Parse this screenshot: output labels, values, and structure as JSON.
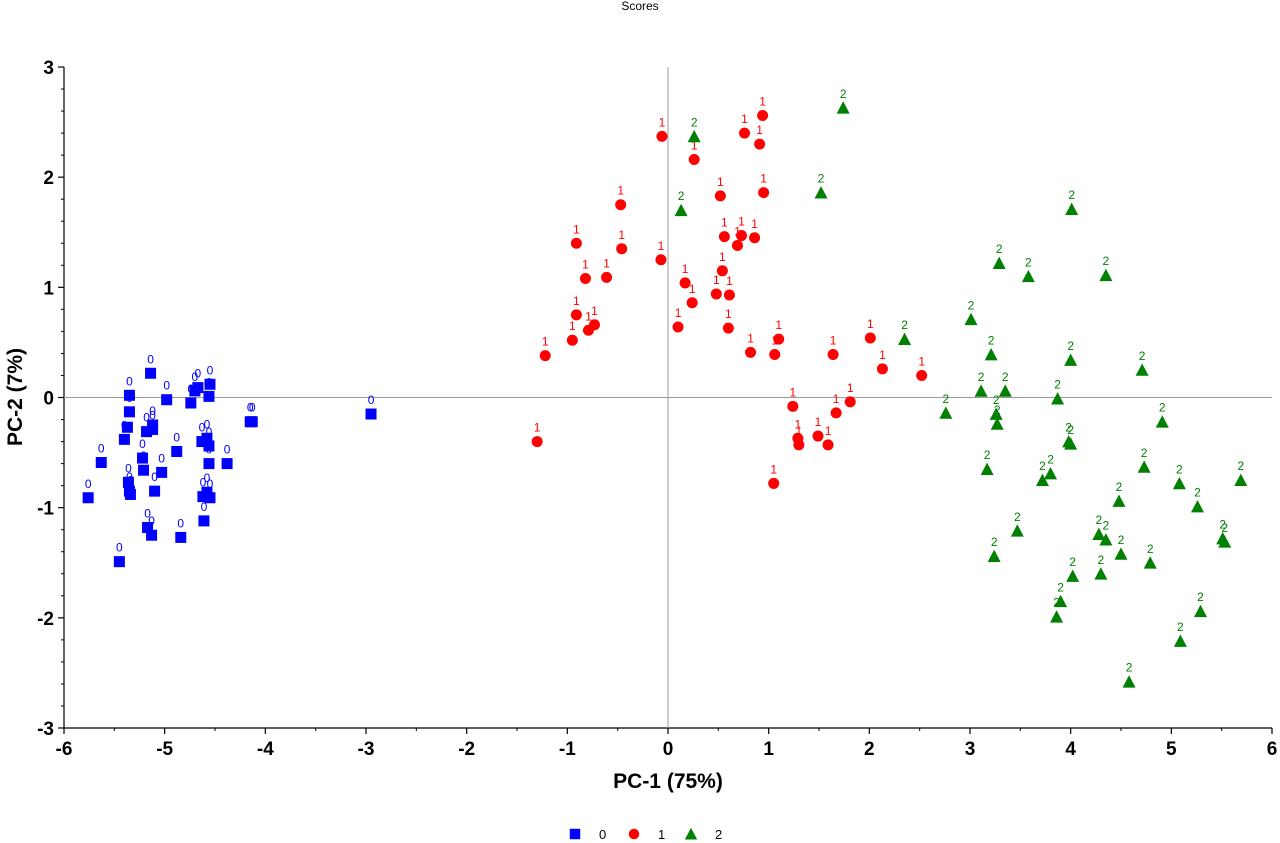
{
  "chart_data": {
    "type": "scatter",
    "title": "Scores",
    "xlabel": "PC-1 (75%)",
    "ylabel": "PC-2 (7%)",
    "xlim": [
      -6,
      6
    ],
    "ylim": [
      -3,
      3
    ],
    "xticks": [
      "-6",
      "-5",
      "-4",
      "-3",
      "-2",
      "-1",
      "0",
      "1",
      "2",
      "3",
      "4",
      "5",
      "6"
    ],
    "yticks": [
      "3",
      "2",
      "1",
      "0",
      "-1",
      "-2",
      "-3"
    ],
    "zero_lines": true,
    "legend_position": "bottom-center",
    "series": [
      {
        "name": "0",
        "label": "0",
        "color": "#0000ff",
        "marker": "square",
        "points": [
          [
            -5.76,
            -0.91
          ],
          [
            -5.63,
            -0.59
          ],
          [
            -5.45,
            -1.49
          ],
          [
            -5.4,
            -0.38
          ],
          [
            -5.37,
            -0.27
          ],
          [
            -5.36,
            -0.77
          ],
          [
            -5.35,
            -0.13
          ],
          [
            -5.35,
            -0.85
          ],
          [
            -5.35,
            0.02
          ],
          [
            -5.34,
            -0.88
          ],
          [
            -5.22,
            -0.55
          ],
          [
            -5.21,
            -0.66
          ],
          [
            -5.18,
            -0.31
          ],
          [
            -5.17,
            -1.18
          ],
          [
            -5.14,
            0.22
          ],
          [
            -5.13,
            -1.25
          ],
          [
            -5.12,
            -0.29
          ],
          [
            -5.12,
            -0.25
          ],
          [
            -5.1,
            -0.85
          ],
          [
            -5.03,
            -0.68
          ],
          [
            -4.98,
            -0.02
          ],
          [
            -4.88,
            -0.49
          ],
          [
            -4.84,
            -1.27
          ],
          [
            -4.74,
            -0.05
          ],
          [
            -4.7,
            0.06
          ],
          [
            -4.67,
            0.09
          ],
          [
            -4.63,
            -0.4
          ],
          [
            -4.62,
            -0.9
          ],
          [
            -4.61,
            -1.12
          ],
          [
            -4.58,
            -0.37
          ],
          [
            -4.58,
            -0.86
          ],
          [
            -4.56,
            -0.44
          ],
          [
            -4.56,
            0.01
          ],
          [
            -4.56,
            -0.6
          ],
          [
            -4.55,
            -0.91
          ],
          [
            -4.55,
            0.12
          ],
          [
            -4.38,
            -0.6
          ],
          [
            -4.15,
            -0.22
          ],
          [
            -4.13,
            -0.22
          ],
          [
            -2.95,
            -0.15
          ]
        ]
      },
      {
        "name": "1",
        "label": "1",
        "color": "#ff0000",
        "marker": "circle",
        "points": [
          [
            -1.3,
            -0.4
          ],
          [
            -1.22,
            0.38
          ],
          [
            -0.95,
            0.52
          ],
          [
            -0.91,
            1.4
          ],
          [
            -0.91,
            0.75
          ],
          [
            -0.82,
            1.08
          ],
          [
            -0.79,
            0.61
          ],
          [
            -0.73,
            0.66
          ],
          [
            -0.61,
            1.09
          ],
          [
            -0.47,
            1.75
          ],
          [
            -0.46,
            1.35
          ],
          [
            -0.07,
            1.25
          ],
          [
            -0.06,
            2.37
          ],
          [
            0.1,
            0.64
          ],
          [
            0.17,
            1.04
          ],
          [
            0.24,
            0.86
          ],
          [
            0.26,
            2.16
          ],
          [
            0.48,
            0.94
          ],
          [
            0.52,
            1.83
          ],
          [
            0.54,
            1.15
          ],
          [
            0.56,
            1.46
          ],
          [
            0.6,
            0.63
          ],
          [
            0.61,
            0.93
          ],
          [
            0.69,
            1.38
          ],
          [
            0.73,
            1.47
          ],
          [
            0.76,
            2.4
          ],
          [
            0.82,
            0.41
          ],
          [
            0.86,
            1.45
          ],
          [
            0.91,
            2.3
          ],
          [
            0.94,
            2.56
          ],
          [
            0.95,
            1.86
          ],
          [
            1.05,
            -0.78
          ],
          [
            1.06,
            0.39
          ],
          [
            1.1,
            0.53
          ],
          [
            1.24,
            -0.08
          ],
          [
            1.29,
            -0.37
          ],
          [
            1.3,
            -0.43
          ],
          [
            1.49,
            -0.35
          ],
          [
            1.59,
            -0.43
          ],
          [
            1.64,
            0.39
          ],
          [
            1.67,
            -0.14
          ],
          [
            1.81,
            -0.04
          ],
          [
            2.01,
            0.54
          ],
          [
            2.13,
            0.26
          ],
          [
            2.52,
            0.2
          ]
        ]
      },
      {
        "name": "2",
        "label": "2",
        "color": "#008000",
        "marker": "triangle",
        "points": [
          [
            0.13,
            1.7
          ],
          [
            0.26,
            2.37
          ],
          [
            1.52,
            1.86
          ],
          [
            1.74,
            2.63
          ],
          [
            2.35,
            0.53
          ],
          [
            2.76,
            -0.14
          ],
          [
            3.01,
            0.71
          ],
          [
            3.11,
            0.06
          ],
          [
            3.17,
            -0.65
          ],
          [
            3.21,
            0.39
          ],
          [
            3.24,
            -1.44
          ],
          [
            3.26,
            -0.15
          ],
          [
            3.27,
            -0.24
          ],
          [
            3.29,
            1.22
          ],
          [
            3.35,
            0.06
          ],
          [
            3.47,
            -1.21
          ],
          [
            3.58,
            1.1
          ],
          [
            3.72,
            -0.75
          ],
          [
            3.8,
            -0.69
          ],
          [
            3.86,
            -1.99
          ],
          [
            3.87,
            -0.01
          ],
          [
            3.9,
            -1.85
          ],
          [
            3.98,
            -0.4
          ],
          [
            4.0,
            0.34
          ],
          [
            4.0,
            -0.42
          ],
          [
            4.01,
            1.71
          ],
          [
            4.02,
            -1.62
          ],
          [
            4.28,
            -1.24
          ],
          [
            4.3,
            -1.6
          ],
          [
            4.35,
            -1.29
          ],
          [
            4.35,
            1.11
          ],
          [
            4.48,
            -0.94
          ],
          [
            4.5,
            -1.42
          ],
          [
            4.58,
            -2.58
          ],
          [
            4.71,
            0.25
          ],
          [
            4.73,
            -0.63
          ],
          [
            4.79,
            -1.5
          ],
          [
            4.91,
            -0.22
          ],
          [
            5.08,
            -0.78
          ],
          [
            5.09,
            -2.21
          ],
          [
            5.26,
            -0.99
          ],
          [
            5.29,
            -1.94
          ],
          [
            5.51,
            -1.28
          ],
          [
            5.53,
            -1.31
          ],
          [
            5.69,
            -0.75
          ]
        ]
      }
    ]
  }
}
